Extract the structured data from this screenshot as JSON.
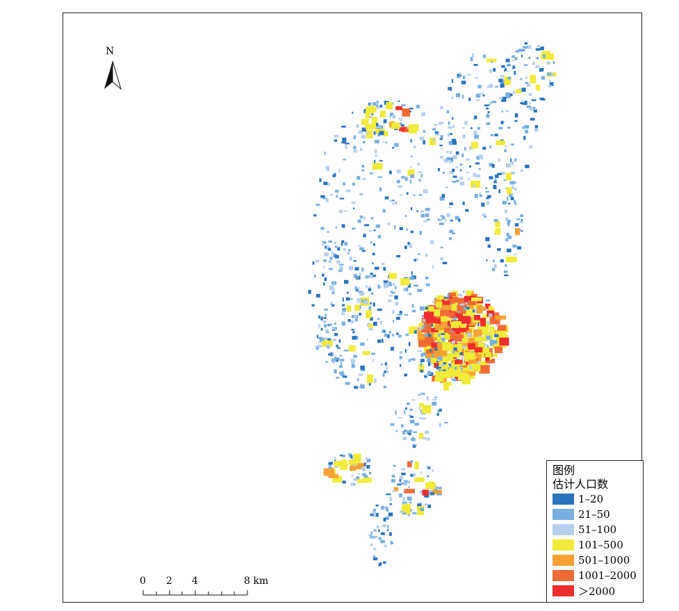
{
  "north_arrow": {
    "label": "N"
  },
  "scale_bar": {
    "ticks": [
      "0",
      "2",
      "4",
      "8 km"
    ]
  },
  "legend": {
    "title": "图例",
    "subtitle": "估计人口数",
    "items": [
      {
        "label": "1–20",
        "color": "#2b72bd"
      },
      {
        "label": "21–50",
        "color": "#78aee0"
      },
      {
        "label": "51–100",
        "color": "#b7cfee"
      },
      {
        "label": "101–500",
        "color": "#f0ea3a"
      },
      {
        "label": "501–1000",
        "color": "#f6a133"
      },
      {
        "label": "1001–2000",
        "color": "#f06a35"
      },
      {
        "label": "＞2000",
        "color": "#ee2d2d"
      }
    ]
  }
}
